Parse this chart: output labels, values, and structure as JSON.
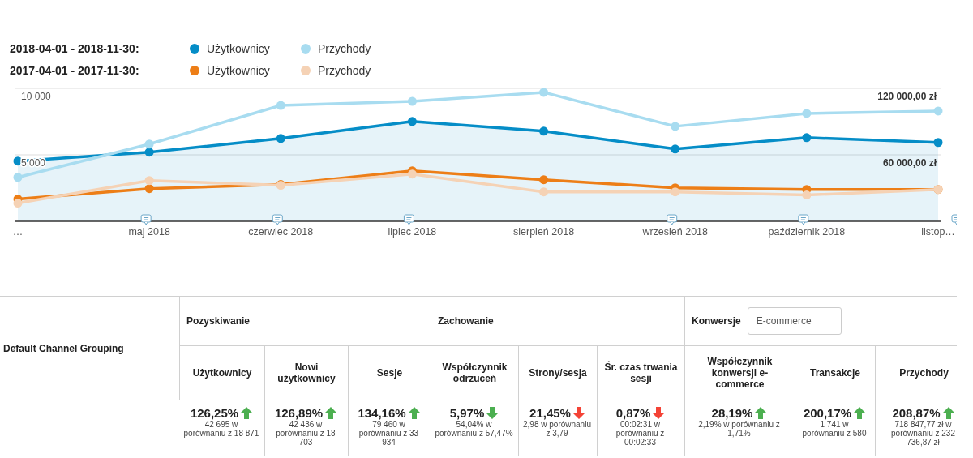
{
  "chart_data": [
    {
      "type": "line",
      "categories": [
        "…",
        "maj 2018",
        "czerwiec 2018",
        "lipiec 2018",
        "sierpień 2018",
        "wrzesień 2018",
        "październik 2018",
        "listop…"
      ],
      "series": [
        {
          "name": "Użytkownicy",
          "type": "area",
          "color": "#058dc7",
          "values": [
            4530,
            5200,
            6230,
            7510,
            6780,
            5440,
            6290,
            5930
          ]
        },
        {
          "name": "Przychody",
          "axis": "y2",
          "color": "#a8dcf0",
          "values": [
            39700,
            69700,
            104600,
            108300,
            116400,
            85700,
            97400,
            99600
          ]
        },
        {
          "name": "Użytkownicy",
          "color": "#ed7e17",
          "values": [
            1670,
            2460,
            2770,
            3800,
            3130,
            2520,
            2400,
            2400
          ]
        },
        {
          "name": "Przychody",
          "axis": "y2",
          "color": "#f5d2b5",
          "values": [
            16400,
            36800,
            32500,
            42700,
            26600,
            26600,
            23700,
            28800
          ]
        }
      ],
      "ylim": [
        0,
        10000
      ],
      "yticks": [
        {
          "value": 5000,
          "label": "5 000"
        },
        {
          "value": 10000,
          "label": "10 000"
        }
      ],
      "y2lim": [
        0,
        120000
      ],
      "y2ticks": [
        {
          "value": 60000,
          "label": "60 000,00 zł"
        },
        {
          "value": 120000,
          "label": "120 000,00 zł"
        }
      ],
      "annotations": [
        "2018-04-01 - 2018-11-30:",
        "2017-04-01 - 2017-11-30:"
      ],
      "grid": "y",
      "legend": "top left",
      "marker": "circle",
      "line_style": "solid"
    },
    {
      "type": "other",
      "categories": [
        "Użytkownicy",
        "Nowi użytkownicy",
        "Sesje",
        "Współczynnik odrzuceń",
        "Strony/sesja",
        "Śr. czas trwania sesji",
        "Współczynnik konwersji e-commerce",
        "Transakcje",
        "Przychody"
      ],
      "value_labels": [
        "126,25%",
        "126,89%",
        "134,16%",
        "5,97%",
        "21,45%",
        "0,87%",
        "28,19%",
        "200,17%",
        "208,87%"
      ],
      "colors": [
        "#4caf50",
        "#4caf50",
        "#4caf50",
        "#4caf50",
        "#f44336",
        "#f44336",
        "#4caf50",
        "#4caf50",
        "#4caf50"
      ],
      "annotations": [
        "Default Channel Grouping",
        "Pozyskiwanie",
        "Zachowanie",
        "Konwersje",
        "E-commerce",
        "42 695 w porównaniu z 18 871",
        "42 436 w porównaniu z 18 703",
        "79 460 w porównaniu z 33 934",
        "54,04% w porównaniu z 57,47%",
        "2,98 w porównaniu z 3,79",
        "00:02:31 w porównaniu z 00:02:33",
        "2,19% w porównaniu z 1,71%",
        "1 741 w porównaniu z 580",
        "718 847,77 zł w porównaniu z 232 736,87 zł"
      ]
    }
  ]
}
